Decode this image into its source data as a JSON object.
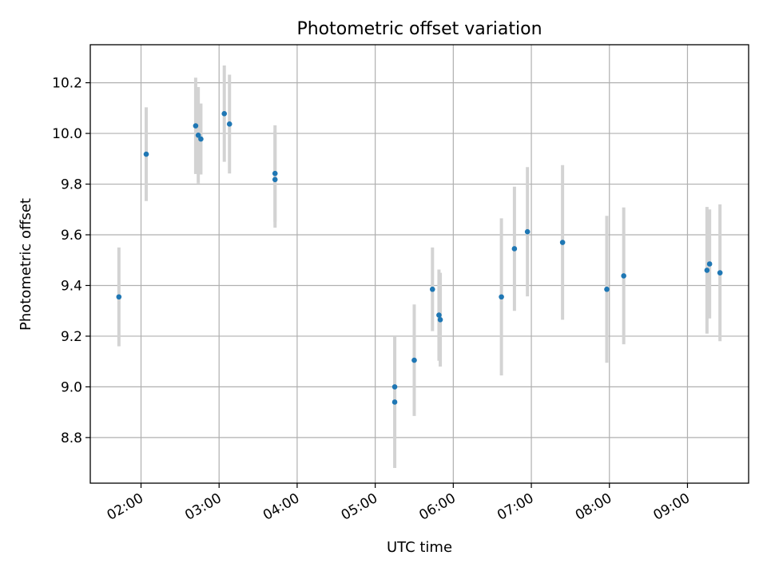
{
  "chart_data": {
    "type": "scatter",
    "title": "Photometric offset variation",
    "xlabel": "UTC time",
    "ylabel": "Photometric offset",
    "x_ticks": [
      "02:00",
      "03:00",
      "04:00",
      "05:00",
      "06:00",
      "07:00",
      "08:00",
      "09:00"
    ],
    "y_ticks": [
      "8.8",
      "9.0",
      "9.2",
      "9.4",
      "9.6",
      "9.8",
      "10.0",
      "10.2"
    ],
    "xlim": [
      "01:21",
      "09:47"
    ],
    "ylim": [
      8.62,
      10.35
    ],
    "grid": true,
    "marker_color": "#1f77b4",
    "errorbar_color": "#d3d3d3",
    "points": [
      {
        "x": "01:43",
        "y": 9.355,
        "yerr": 0.195
      },
      {
        "x": "02:04",
        "y": 9.918,
        "yerr": 0.185
      },
      {
        "x": "02:42",
        "y": 10.03,
        "yerr": 0.19
      },
      {
        "x": "02:44",
        "y": 9.993,
        "yerr": 0.19
      },
      {
        "x": "02:46",
        "y": 9.978,
        "yerr": 0.14
      },
      {
        "x": "03:04",
        "y": 10.078,
        "yerr": 0.19
      },
      {
        "x": "03:08",
        "y": 10.037,
        "yerr": 0.195
      },
      {
        "x": "03:43",
        "y": 9.842,
        "yerr": 0.19
      },
      {
        "x": "03:43",
        "y": 9.818,
        "yerr": 0.19
      },
      {
        "x": "05:15",
        "y": 9.0,
        "yerr": 0.2
      },
      {
        "x": "05:15",
        "y": 8.94,
        "yerr": 0.26
      },
      {
        "x": "05:30",
        "y": 9.105,
        "yerr": 0.22
      },
      {
        "x": "05:44",
        "y": 9.385,
        "yerr": 0.165
      },
      {
        "x": "05:49",
        "y": 9.283,
        "yerr": 0.18
      },
      {
        "x": "05:50",
        "y": 9.265,
        "yerr": 0.185
      },
      {
        "x": "06:37",
        "y": 9.355,
        "yerr": 0.31
      },
      {
        "x": "06:47",
        "y": 9.545,
        "yerr": 0.245
      },
      {
        "x": "06:57",
        "y": 9.612,
        "yerr": 0.255
      },
      {
        "x": "07:24",
        "y": 9.57,
        "yerr": 0.305
      },
      {
        "x": "07:58",
        "y": 9.385,
        "yerr": 0.29
      },
      {
        "x": "08:11",
        "y": 9.438,
        "yerr": 0.27
      },
      {
        "x": "09:15",
        "y": 9.46,
        "yerr": 0.25
      },
      {
        "x": "09:17",
        "y": 9.485,
        "yerr": 0.215
      },
      {
        "x": "09:25",
        "y": 9.45,
        "yerr": 0.27
      }
    ]
  }
}
